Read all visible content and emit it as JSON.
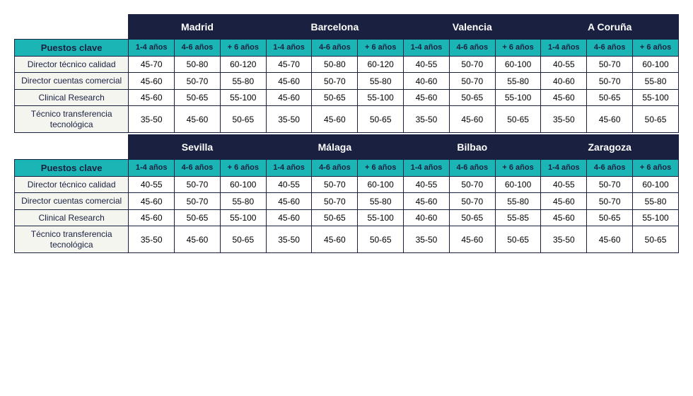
{
  "tables": [
    {
      "cities": [
        "Madrid",
        "Barcelona",
        "Valencia",
        "A Coruña"
      ],
      "puestos_label": "Puestos clave",
      "years": [
        "1-4 años",
        "4-6 años",
        "+ 6 años"
      ],
      "rows": [
        {
          "label": "Director técnico calidad",
          "values": [
            "45-70",
            "50-80",
            "60-120",
            "45-70",
            "50-80",
            "60-120",
            "40-55",
            "50-70",
            "60-100",
            "40-55",
            "50-70",
            "60-100"
          ]
        },
        {
          "label": "Director cuentas comercial",
          "values": [
            "45-60",
            "50-70",
            "55-80",
            "45-60",
            "50-70",
            "55-80",
            "40-60",
            "50-70",
            "55-80",
            "40-60",
            "50-70",
            "55-80"
          ]
        },
        {
          "label": "Clinical Research",
          "values": [
            "45-60",
            "50-65",
            "55-100",
            "45-60",
            "50-65",
            "55-100",
            "45-60",
            "50-65",
            "55-100",
            "45-60",
            "50-65",
            "55-100"
          ]
        },
        {
          "label": "Técnico transferencia tecnológica",
          "values": [
            "35-50",
            "45-60",
            "50-65",
            "35-50",
            "45-60",
            "50-65",
            "35-50",
            "45-60",
            "50-65",
            "35-50",
            "45-60",
            "50-65"
          ]
        }
      ]
    },
    {
      "cities": [
        "Sevilla",
        "Málaga",
        "Bilbao",
        "Zaragoza"
      ],
      "puestos_label": "Puestos clave",
      "years": [
        "1-4 años",
        "4-6 años",
        "+ 6 años"
      ],
      "rows": [
        {
          "label": "Director técnico calidad",
          "values": [
            "40-55",
            "50-70",
            "60-100",
            "40-55",
            "50-70",
            "60-100",
            "40-55",
            "50-70",
            "60-100",
            "40-55",
            "50-70",
            "60-100"
          ]
        },
        {
          "label": "Director cuentas comercial",
          "values": [
            "45-60",
            "50-70",
            "55-80",
            "45-60",
            "50-70",
            "55-80",
            "45-60",
            "50-70",
            "55-80",
            "45-60",
            "50-70",
            "55-80"
          ]
        },
        {
          "label": "Clinical Research",
          "values": [
            "45-60",
            "50-65",
            "55-100",
            "45-60",
            "50-65",
            "55-100",
            "40-60",
            "50-65",
            "55-85",
            "45-60",
            "50-65",
            "55-100"
          ]
        },
        {
          "label": "Técnico transferencia tecnológica",
          "values": [
            "35-50",
            "45-60",
            "50-65",
            "35-50",
            "45-60",
            "50-65",
            "35-50",
            "45-60",
            "50-65",
            "35-50",
            "45-60",
            "50-65"
          ]
        }
      ]
    }
  ],
  "colors": {
    "header_bg": "#1a2040",
    "header_text": "#ffffff",
    "teal_bg": "#1bb5b5",
    "teal_text": "#1a2040",
    "row_label_bg": "#f5f5f0",
    "border": "#1a2040"
  }
}
